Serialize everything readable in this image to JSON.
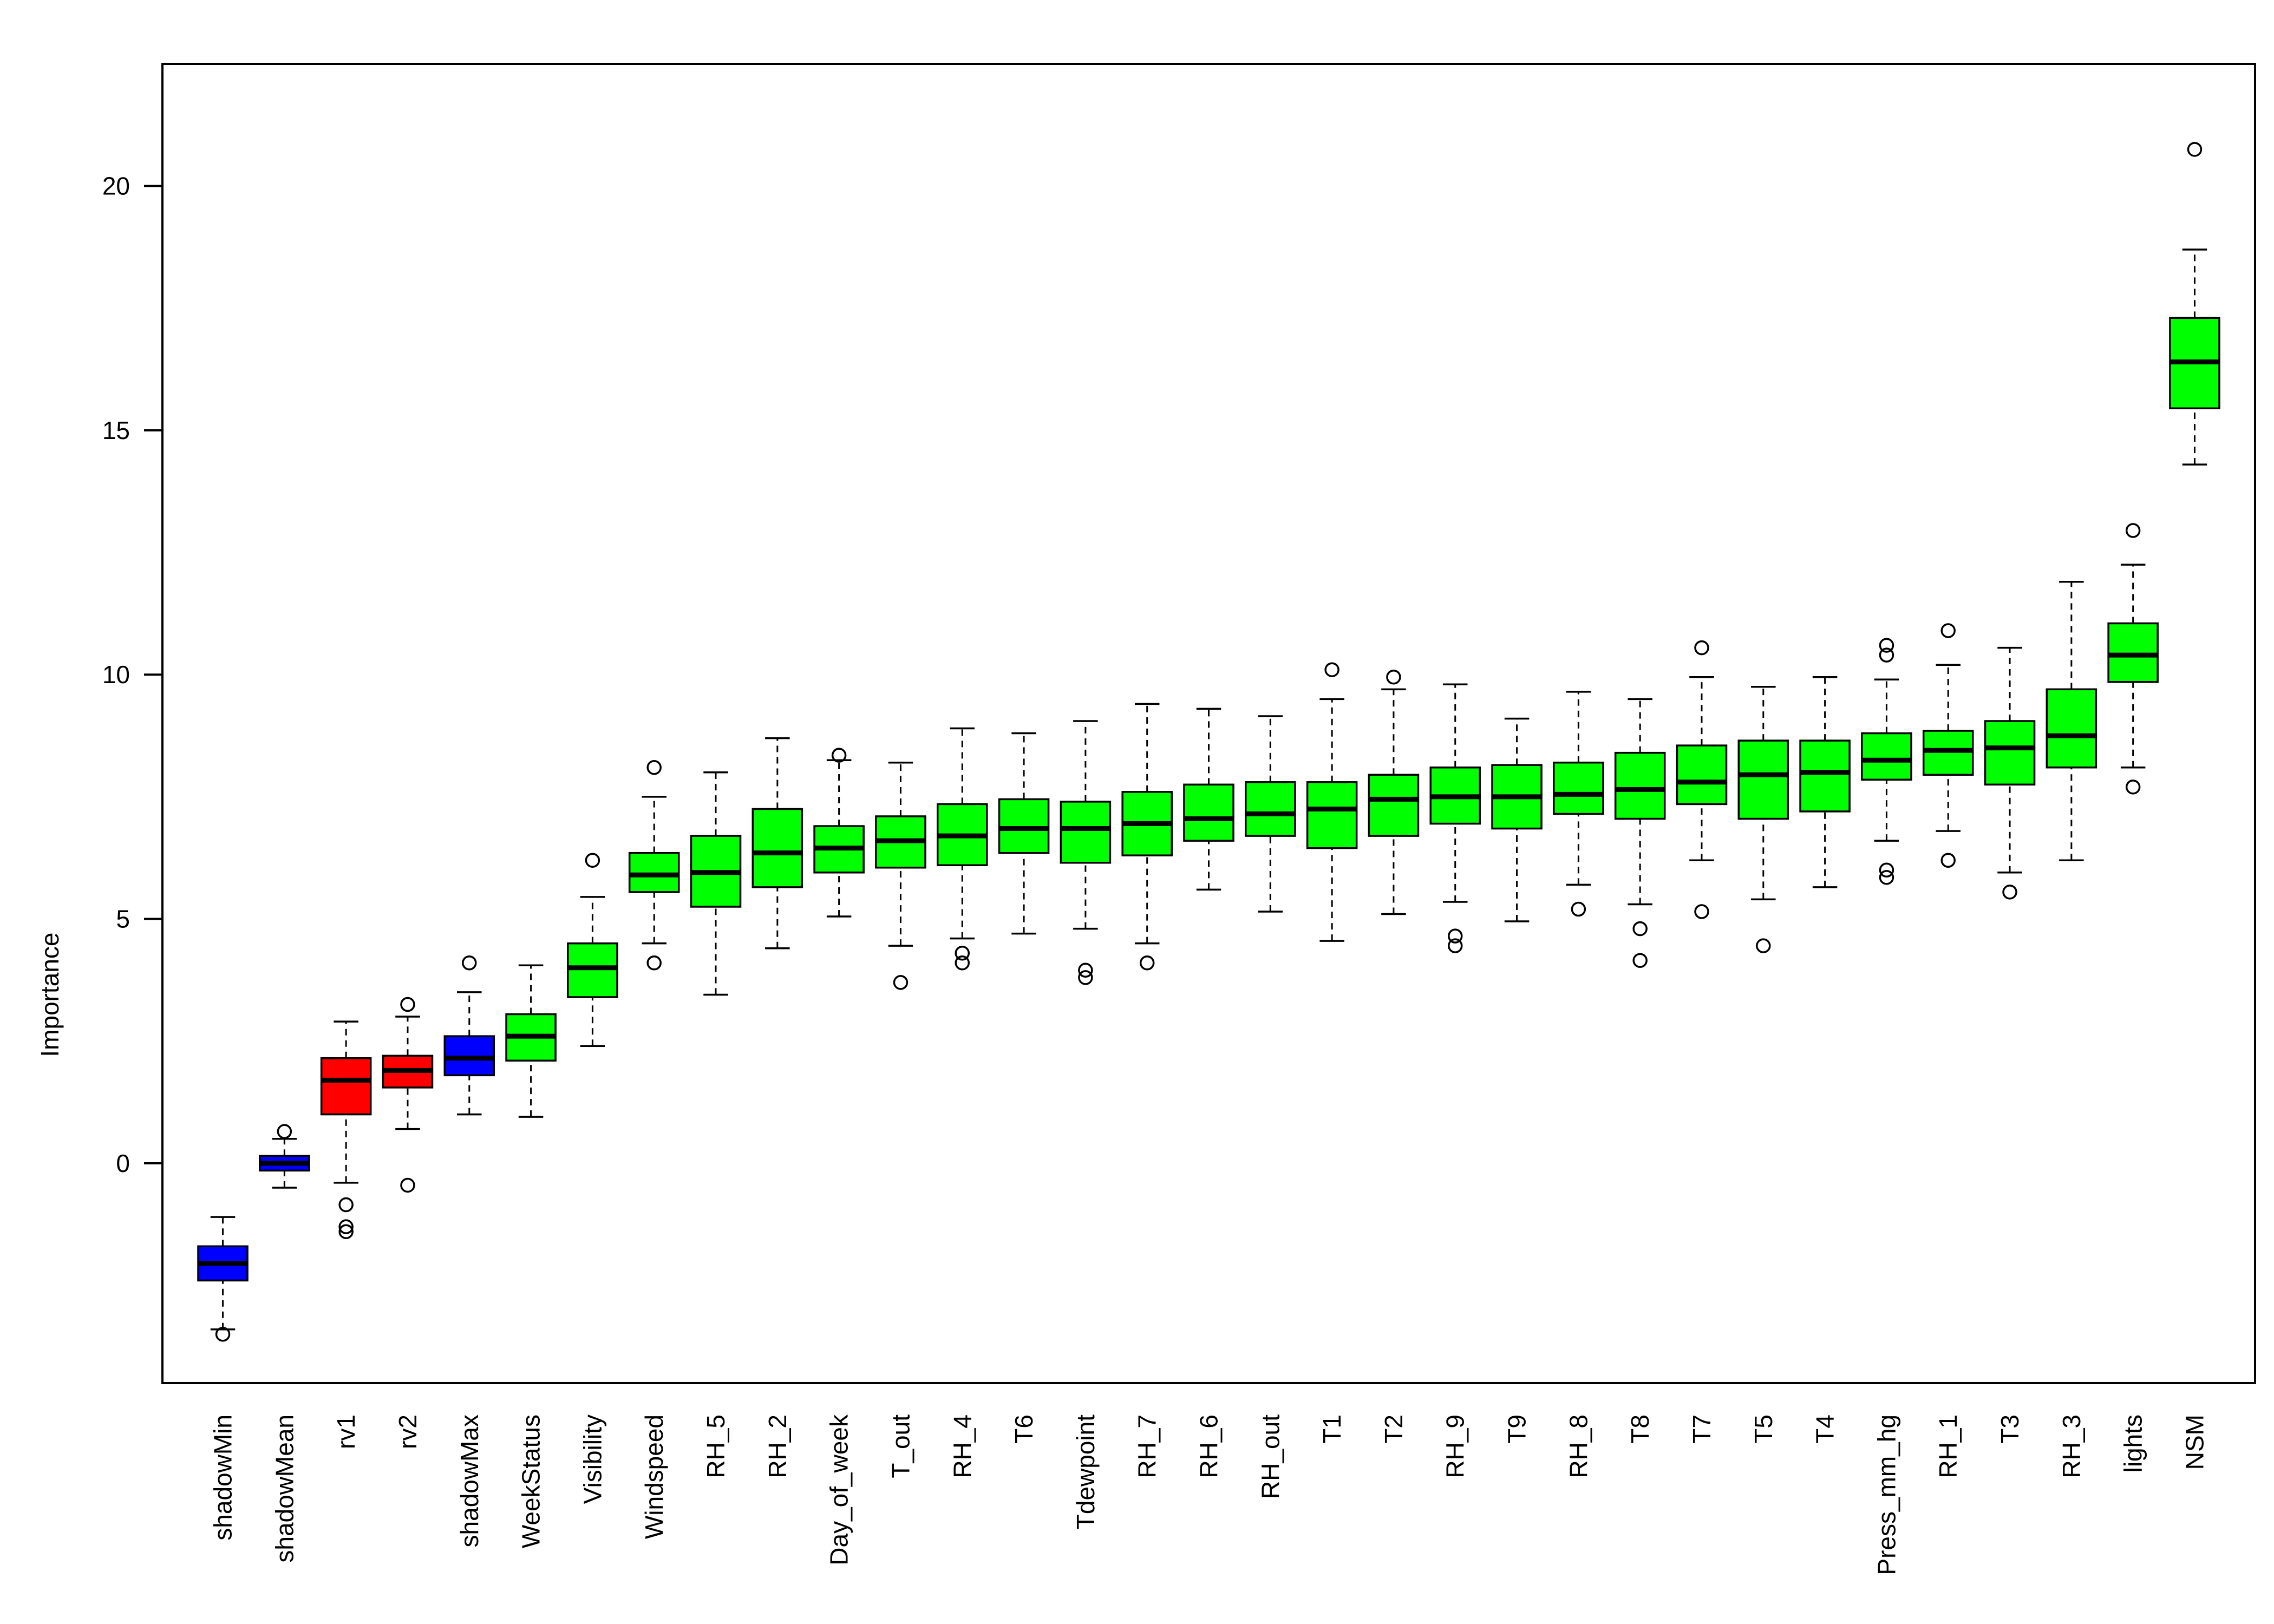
{
  "chart_data": {
    "type": "boxplot",
    "ylabel": "Importance",
    "ylim": [
      -4.5,
      22.5
    ],
    "yticks": [
      0,
      5,
      10,
      15,
      20
    ],
    "grid": false,
    "legend": "none",
    "colors": {
      "rejected": "#ff0000",
      "confirmed": "#00ff00",
      "shadow": "#0000ff"
    },
    "boxes": [
      {
        "label": "shadowMin",
        "group": "shadow",
        "min": -3.4,
        "q1": -2.4,
        "median": -2.05,
        "q3": -1.7,
        "max": -1.1,
        "outliers": [
          -3.5
        ]
      },
      {
        "label": "shadowMean",
        "group": "shadow",
        "min": -0.5,
        "q1": -0.15,
        "median": 0.0,
        "q3": 0.15,
        "max": 0.5,
        "outliers": [
          0.65
        ]
      },
      {
        "label": "rv1",
        "group": "rejected",
        "min": -0.4,
        "q1": 1.0,
        "median": 1.7,
        "q3": 2.15,
        "max": 2.9,
        "outliers": [
          -0.85,
          -1.3,
          -1.4
        ]
      },
      {
        "label": "rv2",
        "group": "rejected",
        "min": 0.7,
        "q1": 1.55,
        "median": 1.9,
        "q3": 2.2,
        "max": 3.0,
        "outliers": [
          3.25,
          -0.45
        ]
      },
      {
        "label": "shadowMax",
        "group": "shadow",
        "min": 1.0,
        "q1": 1.8,
        "median": 2.15,
        "q3": 2.6,
        "max": 3.5,
        "outliers": [
          4.1
        ]
      },
      {
        "label": "WeekStatus",
        "group": "confirmed",
        "min": 0.95,
        "q1": 2.1,
        "median": 2.6,
        "q3": 3.05,
        "max": 4.05,
        "outliers": []
      },
      {
        "label": "Visibility",
        "group": "confirmed",
        "min": 2.4,
        "q1": 3.4,
        "median": 4.0,
        "q3": 4.5,
        "max": 5.45,
        "outliers": [
          6.2
        ]
      },
      {
        "label": "Windspeed",
        "group": "confirmed",
        "min": 4.5,
        "q1": 5.55,
        "median": 5.9,
        "q3": 6.35,
        "max": 7.5,
        "outliers": [
          8.1,
          4.1
        ]
      },
      {
        "label": "RH_5",
        "group": "confirmed",
        "min": 3.45,
        "q1": 5.25,
        "median": 5.95,
        "q3": 6.7,
        "max": 8.0,
        "outliers": []
      },
      {
        "label": "RH_2",
        "group": "confirmed",
        "min": 4.4,
        "q1": 5.65,
        "median": 6.35,
        "q3": 7.25,
        "max": 8.7,
        "outliers": []
      },
      {
        "label": "Day_of_week",
        "group": "confirmed",
        "min": 5.05,
        "q1": 5.95,
        "median": 6.45,
        "q3": 6.9,
        "max": 8.25,
        "outliers": [
          8.35
        ]
      },
      {
        "label": "T_out",
        "group": "confirmed",
        "min": 4.45,
        "q1": 6.05,
        "median": 6.6,
        "q3": 7.1,
        "max": 8.2,
        "outliers": [
          3.7
        ]
      },
      {
        "label": "RH_4",
        "group": "confirmed",
        "min": 4.6,
        "q1": 6.1,
        "median": 6.7,
        "q3": 7.35,
        "max": 8.9,
        "outliers": [
          4.3,
          4.1
        ]
      },
      {
        "label": "T6",
        "group": "confirmed",
        "min": 4.7,
        "q1": 6.35,
        "median": 6.85,
        "q3": 7.45,
        "max": 8.8,
        "outliers": []
      },
      {
        "label": "Tdewpoint",
        "group": "confirmed",
        "min": 4.8,
        "q1": 6.15,
        "median": 6.85,
        "q3": 7.4,
        "max": 9.05,
        "outliers": [
          3.95,
          3.8
        ]
      },
      {
        "label": "RH_7",
        "group": "confirmed",
        "min": 4.5,
        "q1": 6.3,
        "median": 6.95,
        "q3": 7.6,
        "max": 9.4,
        "outliers": [
          4.1
        ]
      },
      {
        "label": "RH_6",
        "group": "confirmed",
        "min": 5.6,
        "q1": 6.6,
        "median": 7.05,
        "q3": 7.75,
        "max": 9.3,
        "outliers": []
      },
      {
        "label": "RH_out",
        "group": "confirmed",
        "min": 5.15,
        "q1": 6.7,
        "median": 7.15,
        "q3": 7.8,
        "max": 9.15,
        "outliers": []
      },
      {
        "label": "T1",
        "group": "confirmed",
        "min": 4.55,
        "q1": 6.45,
        "median": 7.25,
        "q3": 7.8,
        "max": 9.5,
        "outliers": [
          10.1
        ]
      },
      {
        "label": "T2",
        "group": "confirmed",
        "min": 5.1,
        "q1": 6.7,
        "median": 7.45,
        "q3": 7.95,
        "max": 9.7,
        "outliers": [
          9.95
        ]
      },
      {
        "label": "RH_9",
        "group": "confirmed",
        "min": 5.35,
        "q1": 6.95,
        "median": 7.5,
        "q3": 8.1,
        "max": 9.8,
        "outliers": [
          4.65,
          4.45
        ]
      },
      {
        "label": "T9",
        "group": "confirmed",
        "min": 4.95,
        "q1": 6.85,
        "median": 7.5,
        "q3": 8.15,
        "max": 9.1,
        "outliers": []
      },
      {
        "label": "RH_8",
        "group": "confirmed",
        "min": 5.7,
        "q1": 7.15,
        "median": 7.55,
        "q3": 8.2,
        "max": 9.65,
        "outliers": [
          5.2
        ]
      },
      {
        "label": "T8",
        "group": "confirmed",
        "min": 5.3,
        "q1": 7.05,
        "median": 7.65,
        "q3": 8.4,
        "max": 9.5,
        "outliers": [
          4.8,
          4.15
        ]
      },
      {
        "label": "T7",
        "group": "confirmed",
        "min": 6.2,
        "q1": 7.35,
        "median": 7.8,
        "q3": 8.55,
        "max": 9.95,
        "outliers": [
          10.55,
          5.15
        ]
      },
      {
        "label": "T5",
        "group": "confirmed",
        "min": 5.4,
        "q1": 7.05,
        "median": 7.95,
        "q3": 8.65,
        "max": 9.75,
        "outliers": [
          4.45
        ]
      },
      {
        "label": "T4",
        "group": "confirmed",
        "min": 5.65,
        "q1": 7.2,
        "median": 8.0,
        "q3": 8.65,
        "max": 9.95,
        "outliers": []
      },
      {
        "label": "Press_mm_hg",
        "group": "confirmed",
        "min": 6.6,
        "q1": 7.85,
        "median": 8.25,
        "q3": 8.8,
        "max": 9.9,
        "outliers": [
          10.6,
          10.4,
          6.0,
          5.85
        ]
      },
      {
        "label": "RH_1",
        "group": "confirmed",
        "min": 6.8,
        "q1": 7.95,
        "median": 8.45,
        "q3": 8.85,
        "max": 10.2,
        "outliers": [
          10.9,
          6.2
        ]
      },
      {
        "label": "T3",
        "group": "confirmed",
        "min": 5.95,
        "q1": 7.75,
        "median": 8.5,
        "q3": 9.05,
        "max": 10.55,
        "outliers": [
          5.55
        ]
      },
      {
        "label": "RH_3",
        "group": "confirmed",
        "min": 6.2,
        "q1": 8.1,
        "median": 8.75,
        "q3": 9.7,
        "max": 11.9,
        "outliers": []
      },
      {
        "label": "lights",
        "group": "confirmed",
        "min": 8.1,
        "q1": 9.85,
        "median": 10.4,
        "q3": 11.05,
        "max": 12.25,
        "outliers": [
          12.95,
          7.7
        ]
      },
      {
        "label": "NSM",
        "group": "confirmed",
        "min": 14.3,
        "q1": 15.45,
        "median": 16.4,
        "q3": 17.3,
        "max": 18.7,
        "outliers": [
          20.75
        ]
      }
    ]
  }
}
